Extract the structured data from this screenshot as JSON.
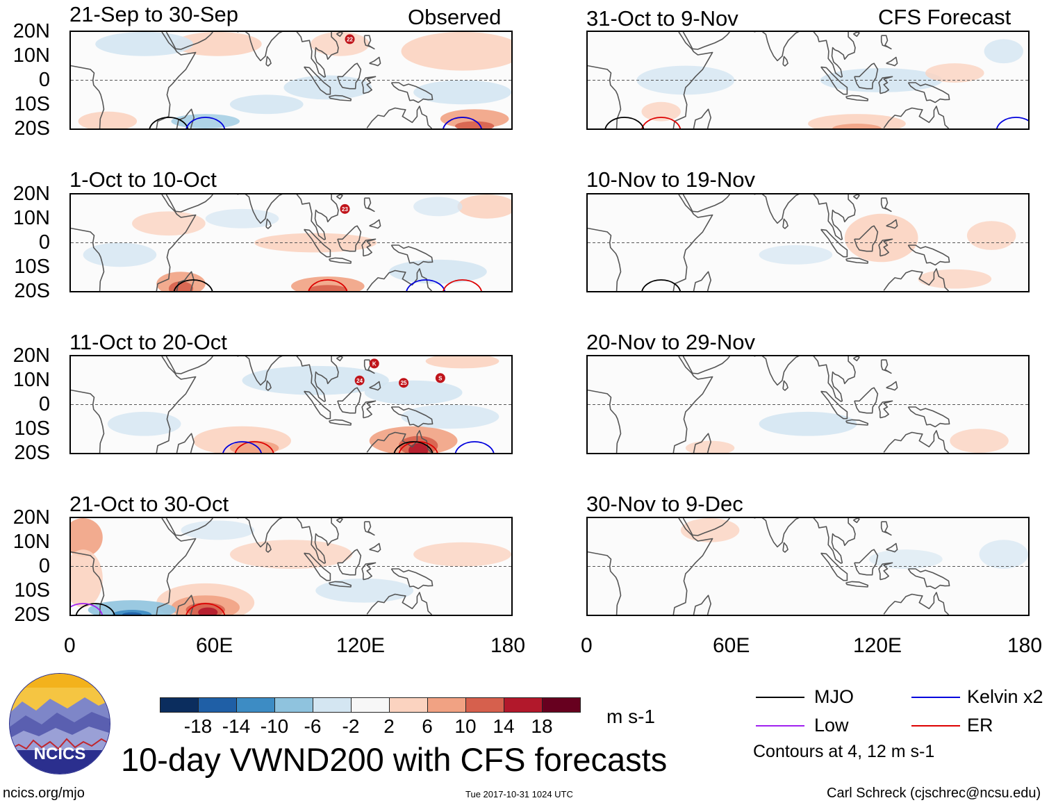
{
  "header": {
    "left_label": "Observed",
    "right_label": "CFS Forecast"
  },
  "panels_left": [
    {
      "date_range": "21-Sep to 30-Sep",
      "storms": [
        "22"
      ]
    },
    {
      "date_range": "1-Oct to 10-Oct",
      "storms": [
        "23"
      ]
    },
    {
      "date_range": "11-Oct to 20-Oct",
      "storms": [
        "K",
        "24",
        "25",
        "S"
      ]
    },
    {
      "date_range": "21-Oct to 30-Oct",
      "storms": []
    }
  ],
  "panels_right": [
    {
      "date_range": "31-Oct to 9-Nov"
    },
    {
      "date_range": "10-Nov to 19-Nov"
    },
    {
      "date_range": "20-Nov to 29-Nov"
    },
    {
      "date_range": "30-Nov to 9-Dec"
    }
  ],
  "axes": {
    "lat_labels": [
      "20N",
      "10N",
      "0",
      "10S",
      "20S"
    ],
    "lon_labels": [
      "0",
      "60E",
      "120E",
      "180"
    ]
  },
  "colorbar": {
    "labels": [
      "-18",
      "-14",
      "-10",
      "-6",
      "-2",
      "2",
      "6",
      "10",
      "14",
      "18"
    ],
    "colors": [
      "#0b2d5e",
      "#1f5fa6",
      "#3d8cc4",
      "#8fc3de",
      "#d4e6f2",
      "#f7f7f7",
      "#fbd3c0",
      "#f1a283",
      "#d6604d",
      "#b2182b",
      "#67001f"
    ],
    "units": "m s-1"
  },
  "legend": {
    "items": [
      {
        "label": "MJO",
        "color": "#000000"
      },
      {
        "label": "Kelvin x2",
        "color": "#0000dd"
      },
      {
        "label": "Low",
        "color": "#a020f0"
      },
      {
        "label": "ER",
        "color": "#dd0000"
      }
    ],
    "note": "Contours at 4, 12 m s-1"
  },
  "footer": {
    "logo_text": "NCICS",
    "main_title": "10-day VWND200 with CFS forecasts",
    "url": "ncics.org/mjo",
    "timestamp": "Tue 2017-10-31 1024 UTC",
    "credit": "Carl Schreck (cjschrec@ncsu.edu)"
  }
}
